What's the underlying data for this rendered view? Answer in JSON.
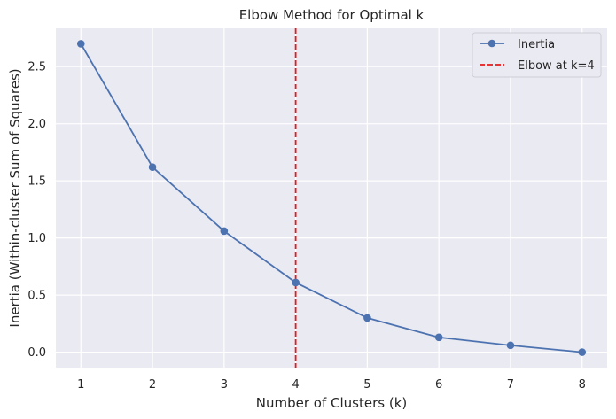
{
  "chart_data": {
    "type": "line",
    "title": "Elbow Method for Optimal k",
    "xlabel": "Number of Clusters (k)",
    "ylabel": "Inertia (Within-cluster Sum of Squares)",
    "x": [
      1,
      2,
      3,
      4,
      5,
      6,
      7,
      8
    ],
    "xticks": [
      "1",
      "2",
      "3",
      "4",
      "5",
      "6",
      "7",
      "8"
    ],
    "yticks": [
      "0.0",
      "0.5",
      "1.0",
      "1.5",
      "2.0",
      "2.5"
    ],
    "ytick_values": [
      0,
      0.5,
      1.0,
      1.5,
      2.0,
      2.5
    ],
    "xlim": [
      0.65,
      8.35
    ],
    "ylim": [
      -0.135,
      2.835
    ],
    "grid": true,
    "legend_position": "top-right",
    "series": [
      {
        "name": "Inertia",
        "values": [
          2.7,
          1.62,
          1.06,
          0.61,
          0.3,
          0.13,
          0.06,
          0.0
        ],
        "color": "#4c72b0",
        "marker": "circle"
      }
    ],
    "vline": {
      "x": 4,
      "label": "Elbow at k=4",
      "color": "#e41a1c",
      "style": "dashed"
    },
    "background_color": "#eaeaf2"
  }
}
